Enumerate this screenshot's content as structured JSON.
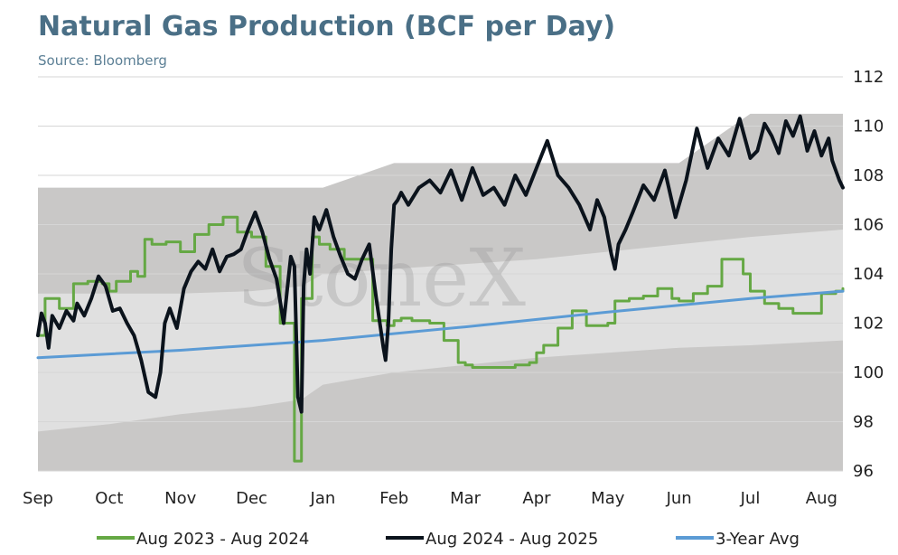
{
  "header": {
    "title": "Natural Gas Production (BCF per Day)",
    "subtitle": "Source: Bloomberg"
  },
  "watermark": "StoneX",
  "colors": {
    "outer_band": "#c9c8c7",
    "inner_band": "#e0e0e0",
    "series_2023": "#65a844",
    "series_2024": "#0b131c",
    "series_avg": "#5b9bd5"
  },
  "chart_data": {
    "type": "line",
    "title": "Natural Gas Production (BCF per Day)",
    "subtitle": "Source: Bloomberg",
    "x_tick_labels": [
      "Sep",
      "Oct",
      "Nov",
      "Dec",
      "Jan",
      "Feb",
      "Mar",
      "Apr",
      "May",
      "Jun",
      "Jul",
      "Aug"
    ],
    "y_tick_labels": [
      "96",
      "98",
      "100",
      "102",
      "104",
      "106",
      "108",
      "110",
      "112"
    ],
    "ylim": [
      96,
      112
    ],
    "x_range_months": [
      0,
      11.3
    ],
    "y_axis_position": "right",
    "grid": "horizontal",
    "legend_position": "bottom",
    "legend": [
      "Aug 2023 - Aug 2024",
      "Aug 2024 - Aug 2025",
      "3-Year Avg"
    ],
    "range_bands": {
      "x": [
        0,
        1,
        2,
        3,
        3.7,
        4,
        5,
        6,
        7,
        8,
        9,
        10,
        11.3
      ],
      "max": [
        107.5,
        107.5,
        107.5,
        107.5,
        107.5,
        107.5,
        108.5,
        108.5,
        108.5,
        108.5,
        108.5,
        110.5,
        110.5
      ],
      "upper_mid": [
        103.2,
        103.2,
        103.2,
        103.3,
        103.5,
        104.0,
        104.2,
        104.4,
        104.6,
        104.9,
        105.2,
        105.5,
        105.8
      ],
      "lower_mid": [
        97.6,
        97.9,
        98.3,
        98.6,
        98.9,
        99.5,
        100.0,
        100.3,
        100.6,
        100.8,
        101.0,
        101.1,
        101.3
      ],
      "min": [
        96,
        96,
        96,
        96,
        96,
        96,
        96,
        96,
        96,
        96,
        96,
        96,
        96
      ]
    },
    "series": [
      {
        "name": "Aug 2023 - Aug 2024",
        "color": "#65a844",
        "step": true,
        "x": [
          0,
          0.1,
          0.3,
          0.5,
          0.7,
          0.9,
          1.0,
          1.1,
          1.3,
          1.4,
          1.5,
          1.6,
          1.8,
          2.0,
          2.2,
          2.4,
          2.6,
          2.8,
          3.0,
          3.2,
          3.4,
          3.6,
          3.7,
          3.85,
          3.95,
          4.1,
          4.3,
          4.5,
          4.7,
          4.9,
          5.0,
          5.1,
          5.25,
          5.5,
          5.7,
          5.9,
          6.0,
          6.1,
          6.3,
          6.5,
          6.7,
          6.9,
          7.0,
          7.1,
          7.3,
          7.5,
          7.7,
          7.9,
          8.0,
          8.1,
          8.3,
          8.5,
          8.7,
          8.9,
          9.0,
          9.2,
          9.4,
          9.6,
          9.8,
          9.9,
          10.0,
          10.2,
          10.4,
          10.6,
          10.8,
          11.0,
          11.2,
          11.3
        ],
        "y": [
          101.5,
          103.0,
          102.6,
          103.6,
          103.7,
          103.6,
          103.3,
          103.7,
          104.1,
          103.9,
          105.4,
          105.2,
          105.3,
          104.9,
          105.6,
          106.0,
          106.3,
          105.7,
          105.5,
          104.3,
          102.0,
          96.4,
          103.0,
          105.5,
          105.2,
          105.0,
          104.6,
          104.6,
          102.1,
          101.9,
          102.1,
          102.2,
          102.1,
          102.0,
          101.3,
          100.4,
          100.3,
          100.2,
          100.2,
          100.2,
          100.3,
          100.4,
          100.8,
          101.1,
          101.8,
          102.5,
          101.9,
          101.9,
          102.0,
          102.9,
          103.0,
          103.1,
          103.4,
          103.0,
          102.9,
          103.2,
          103.5,
          104.6,
          104.6,
          104.0,
          103.3,
          102.8,
          102.6,
          102.4,
          102.4,
          103.2,
          103.3,
          103.4
        ]
      },
      {
        "name": "Aug 2024 - Aug 2025",
        "color": "#0b131c",
        "step": false,
        "x": [
          0,
          0.05,
          0.1,
          0.15,
          0.2,
          0.3,
          0.4,
          0.5,
          0.55,
          0.65,
          0.75,
          0.85,
          0.95,
          1.05,
          1.15,
          1.25,
          1.35,
          1.45,
          1.55,
          1.65,
          1.72,
          1.78,
          1.85,
          1.95,
          2.05,
          2.15,
          2.25,
          2.35,
          2.45,
          2.55,
          2.65,
          2.75,
          2.85,
          2.95,
          3.05,
          3.15,
          3.25,
          3.35,
          3.45,
          3.5,
          3.55,
          3.6,
          3.65,
          3.7,
          3.73,
          3.77,
          3.82,
          3.88,
          3.95,
          4.05,
          4.15,
          4.25,
          4.35,
          4.45,
          4.55,
          4.65,
          4.75,
          4.85,
          4.88,
          4.92,
          4.96,
          5.0,
          5.05,
          5.1,
          5.2,
          5.35,
          5.5,
          5.65,
          5.8,
          5.95,
          6.1,
          6.25,
          6.4,
          6.55,
          6.7,
          6.85,
          7.0,
          7.15,
          7.3,
          7.45,
          7.6,
          7.75,
          7.85,
          7.95,
          8.05,
          8.1,
          8.15,
          8.25,
          8.35,
          8.5,
          8.65,
          8.8,
          8.95,
          9.1,
          9.25,
          9.4,
          9.55,
          9.7,
          9.85,
          10.0,
          10.1,
          10.2,
          10.3,
          10.4,
          10.5,
          10.6,
          10.7,
          10.8,
          10.9,
          11.0,
          11.1,
          11.15,
          11.2,
          11.25,
          11.3
        ],
        "y": [
          101.5,
          102.4,
          102.0,
          101.0,
          102.3,
          101.8,
          102.5,
          102.1,
          102.8,
          102.3,
          103.0,
          103.9,
          103.5,
          102.5,
          102.6,
          102.0,
          101.5,
          100.5,
          99.2,
          99.0,
          100.0,
          102.0,
          102.6,
          101.8,
          103.4,
          104.1,
          104.5,
          104.2,
          105.0,
          104.1,
          104.7,
          104.8,
          105.0,
          105.8,
          106.5,
          105.7,
          104.6,
          103.8,
          102.0,
          103.4,
          104.7,
          104.3,
          99.0,
          98.4,
          103.5,
          105.0,
          104.0,
          106.3,
          105.8,
          106.6,
          105.5,
          104.7,
          104.0,
          103.8,
          104.6,
          105.2,
          103.0,
          101.0,
          100.5,
          102.0,
          105.0,
          106.8,
          107.0,
          107.3,
          106.8,
          107.5,
          107.8,
          107.3,
          108.2,
          107.0,
          108.3,
          107.2,
          107.5,
          106.8,
          108.0,
          107.2,
          108.3,
          109.4,
          108.0,
          107.5,
          106.8,
          105.8,
          107.0,
          106.3,
          104.8,
          104.2,
          105.2,
          105.8,
          106.5,
          107.6,
          107.0,
          108.2,
          106.3,
          107.8,
          109.9,
          108.3,
          109.5,
          108.8,
          110.3,
          108.7,
          109.0,
          110.1,
          109.6,
          108.9,
          110.2,
          109.6,
          110.4,
          109.0,
          109.8,
          108.8,
          109.5,
          108.6,
          108.2,
          107.8,
          107.5
        ]
      },
      {
        "name": "3-Year Avg",
        "color": "#5b9bd5",
        "step": false,
        "x": [
          0,
          2,
          4,
          6,
          8,
          10,
          11.3
        ],
        "y": [
          100.6,
          100.9,
          101.3,
          101.85,
          102.45,
          103.0,
          103.3
        ]
      }
    ]
  },
  "legend_items": [
    {
      "label": "Aug 2023 - Aug 2024",
      "color": "#65a844"
    },
    {
      "label": "Aug 2024 - Aug 2025",
      "color": "#0b131c"
    },
    {
      "label": "3-Year Avg",
      "color": "#5b9bd5"
    }
  ]
}
